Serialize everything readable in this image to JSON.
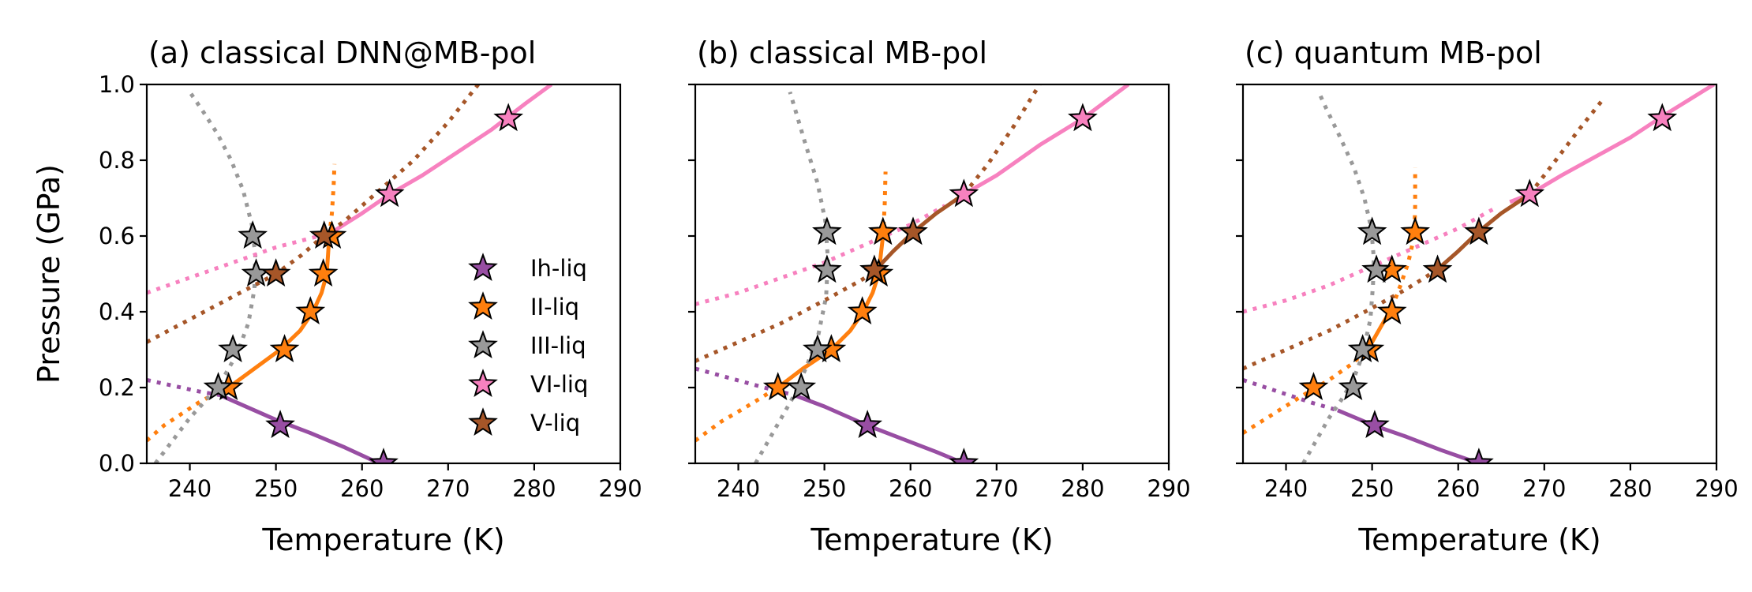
{
  "chart_data": [
    {
      "type": "line",
      "title": "(a) classical DNN@MB-pol",
      "xlabel": "Temperature (K)",
      "ylabel": "Pressure (GPa)",
      "xlim": [
        235,
        290
      ],
      "ylim": [
        0,
        1.0
      ],
      "xticks": [
        240,
        250,
        260,
        270,
        280,
        290
      ],
      "yticks": [
        0.0,
        0.2,
        0.4,
        0.6,
        0.8,
        1.0
      ],
      "ytick_labels": [
        "0.0",
        "0.2",
        "0.4",
        "0.6",
        "0.8",
        "1.0"
      ],
      "legend": {
        "location": "lower-right",
        "entries": [
          {
            "name": "Ih-liq",
            "color": "#984ea3"
          },
          {
            "name": "II-liq",
            "color": "#ff7f0e"
          },
          {
            "name": "III-liq",
            "color": "#999999"
          },
          {
            "name": "VI-liq",
            "color": "#f781bf"
          },
          {
            "name": "V-liq",
            "color": "#a65628"
          }
        ]
      },
      "curves": [
        {
          "phase": "Ih-liq",
          "color": "#984ea3",
          "style": "dotted",
          "x": [
            235,
            238,
            241,
            243.5
          ],
          "y": [
            0.22,
            0.205,
            0.19,
            0.18
          ]
        },
        {
          "phase": "Ih-liq",
          "color": "#984ea3",
          "style": "solid",
          "x": [
            243.5,
            247,
            250,
            254,
            258,
            262
          ],
          "y": [
            0.18,
            0.145,
            0.115,
            0.08,
            0.042,
            0.0
          ]
        },
        {
          "phase": "II-liq",
          "color": "#ff7f0e",
          "style": "dotted",
          "x": [
            235,
            237,
            239,
            241,
            243,
            244.5
          ],
          "y": [
            0.06,
            0.1,
            0.13,
            0.16,
            0.185,
            0.2
          ]
        },
        {
          "phase": "II-liq",
          "color": "#ff7f0e",
          "style": "solid",
          "x": [
            244.5,
            247.5,
            250.5,
            252.8,
            254.3,
            255.3,
            255.9,
            256.2
          ],
          "y": [
            0.2,
            0.25,
            0.3,
            0.35,
            0.4,
            0.45,
            0.5,
            0.6
          ]
        },
        {
          "phase": "II-liq",
          "color": "#ff7f0e",
          "style": "dotted",
          "x": [
            256.2,
            256.5,
            256.7,
            256.8
          ],
          "y": [
            0.6,
            0.66,
            0.73,
            0.79
          ]
        },
        {
          "phase": "III-liq",
          "color": "#999999",
          "style": "dotted",
          "x": [
            236,
            238,
            240,
            242,
            244,
            245.5,
            246.8,
            247.5,
            247.6,
            247.2,
            246.2,
            244.8,
            243.2,
            241.5,
            240
          ],
          "y": [
            0.0,
            0.06,
            0.12,
            0.17,
            0.23,
            0.29,
            0.37,
            0.46,
            0.55,
            0.63,
            0.72,
            0.8,
            0.87,
            0.93,
            0.98
          ]
        },
        {
          "phase": "VI-liq",
          "color": "#f781bf",
          "style": "dotted",
          "x": [
            235,
            240,
            245,
            250,
            255,
            256.5
          ],
          "y": [
            0.45,
            0.49,
            0.53,
            0.57,
            0.6,
            0.61
          ]
        },
        {
          "phase": "VI-liq",
          "color": "#f781bf",
          "style": "solid",
          "x": [
            256.5,
            260,
            263.2,
            267,
            271,
            275,
            279,
            282
          ],
          "y": [
            0.61,
            0.66,
            0.71,
            0.76,
            0.82,
            0.88,
            0.95,
            1.0
          ]
        },
        {
          "phase": "V-liq",
          "color": "#a65628",
          "style": "dotted",
          "x": [
            235,
            240,
            245,
            250,
            253,
            255.5,
            258,
            262,
            266,
            270,
            273.5
          ],
          "y": [
            0.32,
            0.38,
            0.44,
            0.5,
            0.55,
            0.6,
            0.64,
            0.72,
            0.8,
            0.9,
            1.0
          ]
        }
      ],
      "points": [
        {
          "phase": "Ih-liq",
          "color": "#984ea3",
          "x": [
            250.5,
            262.5
          ],
          "y": [
            0.1,
            0.0
          ]
        },
        {
          "phase": "II-liq",
          "color": "#ff7f0e",
          "x": [
            244.5,
            251,
            254,
            255.5,
            256.5
          ],
          "y": [
            0.2,
            0.3,
            0.4,
            0.5,
            0.6
          ]
        },
        {
          "phase": "III-liq",
          "color": "#999999",
          "x": [
            243.3,
            245,
            247.7,
            247.3
          ],
          "y": [
            0.2,
            0.3,
            0.5,
            0.6
          ]
        },
        {
          "phase": "VI-liq",
          "color": "#f781bf",
          "x": [
            263.2,
            277
          ],
          "y": [
            0.71,
            0.91
          ]
        },
        {
          "phase": "V-liq",
          "color": "#a65628",
          "x": [
            250,
            255.6
          ],
          "y": [
            0.5,
            0.6
          ]
        }
      ]
    },
    {
      "type": "line",
      "title": "(b) classical MB-pol",
      "xlabel": "Temperature (K)",
      "ylabel": "",
      "xlim": [
        235,
        290
      ],
      "ylim": [
        0,
        1.0
      ],
      "xticks": [
        240,
        250,
        260,
        270,
        280,
        290
      ],
      "yticks": [
        0.0,
        0.2,
        0.4,
        0.6,
        0.8,
        1.0
      ],
      "ytick_labels": [],
      "curves": [
        {
          "phase": "Ih-liq",
          "color": "#984ea3",
          "style": "dotted",
          "x": [
            235,
            239,
            243,
            246.5
          ],
          "y": [
            0.25,
            0.225,
            0.2,
            0.18
          ]
        },
        {
          "phase": "Ih-liq",
          "color": "#984ea3",
          "style": "solid",
          "x": [
            246.5,
            250,
            255,
            259,
            263,
            266.2
          ],
          "y": [
            0.18,
            0.15,
            0.1,
            0.065,
            0.03,
            0.0
          ]
        },
        {
          "phase": "II-liq",
          "color": "#ff7f0e",
          "style": "dotted",
          "x": [
            235,
            238,
            241,
            243.5,
            244.6
          ],
          "y": [
            0.06,
            0.11,
            0.15,
            0.185,
            0.2
          ]
        },
        {
          "phase": "II-liq",
          "color": "#ff7f0e",
          "style": "solid",
          "x": [
            244.6,
            247.5,
            250.8,
            253,
            254.5,
            255.6,
            256.3,
            256.8
          ],
          "y": [
            0.2,
            0.25,
            0.3,
            0.35,
            0.4,
            0.45,
            0.5,
            0.6
          ]
        },
        {
          "phase": "II-liq",
          "color": "#ff7f0e",
          "style": "dotted",
          "x": [
            256.8,
            257,
            257.1
          ],
          "y": [
            0.6,
            0.68,
            0.77
          ]
        },
        {
          "phase": "III-liq",
          "color": "#999999",
          "style": "dotted",
          "x": [
            242,
            244.5,
            246.5,
            248,
            249.3,
            250.2,
            250.4,
            250.1,
            249.2,
            247.7,
            246
          ],
          "y": [
            0.0,
            0.1,
            0.18,
            0.26,
            0.34,
            0.44,
            0.54,
            0.64,
            0.74,
            0.85,
            0.98
          ]
        },
        {
          "phase": "VI-liq",
          "color": "#f781bf",
          "style": "dotted",
          "x": [
            235,
            240,
            245,
            250,
            255,
            260,
            264
          ],
          "y": [
            0.42,
            0.45,
            0.49,
            0.53,
            0.58,
            0.63,
            0.68
          ]
        },
        {
          "phase": "VI-liq",
          "color": "#f781bf",
          "style": "solid",
          "x": [
            266.2,
            270,
            275,
            280,
            285.3
          ],
          "y": [
            0.71,
            0.76,
            0.84,
            0.91,
            1.0
          ]
        },
        {
          "phase": "V-liq",
          "color": "#a65628",
          "style": "dotted",
          "x": [
            235,
            240,
            245,
            250,
            254,
            255.5
          ],
          "y": [
            0.27,
            0.32,
            0.37,
            0.43,
            0.48,
            0.5
          ]
        },
        {
          "phase": "V-liq",
          "color": "#a65628",
          "style": "solid",
          "x": [
            255.5,
            258,
            260.3,
            263,
            266.2
          ],
          "y": [
            0.5,
            0.56,
            0.61,
            0.66,
            0.71
          ]
        },
        {
          "phase": "V-liq",
          "color": "#a65628",
          "style": "dotted",
          "x": [
            266.2,
            269,
            272,
            275
          ],
          "y": [
            0.71,
            0.79,
            0.89,
            1.0
          ]
        }
      ],
      "points": [
        {
          "phase": "Ih-liq",
          "color": "#984ea3",
          "x": [
            255,
            266.2
          ],
          "y": [
            0.1,
            0.0
          ]
        },
        {
          "phase": "II-liq",
          "color": "#ff7f0e",
          "x": [
            244.6,
            250.8,
            254.4,
            256.3,
            256.8
          ],
          "y": [
            0.2,
            0.3,
            0.4,
            0.5,
            0.61
          ]
        },
        {
          "phase": "III-liq",
          "color": "#999999",
          "x": [
            247.3,
            249.2,
            250.3,
            250.3
          ],
          "y": [
            0.2,
            0.3,
            0.51,
            0.61
          ]
        },
        {
          "phase": "VI-liq",
          "color": "#f781bf",
          "x": [
            266.2,
            280
          ],
          "y": [
            0.71,
            0.91
          ]
        },
        {
          "phase": "V-liq",
          "color": "#a65628",
          "x": [
            255.8,
            260.3
          ],
          "y": [
            0.51,
            0.61
          ]
        }
      ]
    },
    {
      "type": "line",
      "title": "(c) quantum MB-pol",
      "xlabel": "Temperature (K)",
      "ylabel": "",
      "xlim": [
        235,
        290
      ],
      "ylim": [
        0,
        1.0
      ],
      "xticks": [
        240,
        250,
        260,
        270,
        280,
        290
      ],
      "yticks": [
        0.0,
        0.2,
        0.4,
        0.6,
        0.8,
        1.0
      ],
      "ytick_labels": [],
      "curves": [
        {
          "phase": "Ih-liq",
          "color": "#984ea3",
          "style": "dotted",
          "x": [
            235,
            239,
            243,
            246
          ],
          "y": [
            0.22,
            0.19,
            0.16,
            0.14
          ]
        },
        {
          "phase": "Ih-liq",
          "color": "#984ea3",
          "style": "solid",
          "x": [
            246,
            250.2,
            254,
            258,
            262.4
          ],
          "y": [
            0.14,
            0.1,
            0.07,
            0.035,
            0.0
          ]
        },
        {
          "phase": "II-liq",
          "color": "#ff7f0e",
          "style": "dotted",
          "x": [
            235,
            238.5,
            242,
            245,
            247.5,
            249.5
          ],
          "y": [
            0.08,
            0.13,
            0.18,
            0.22,
            0.26,
            0.3
          ]
        },
        {
          "phase": "II-liq",
          "color": "#ff7f0e",
          "style": "solid",
          "x": [
            249.5,
            251,
            252.3
          ],
          "y": [
            0.3,
            0.36,
            0.41
          ]
        },
        {
          "phase": "II-liq",
          "color": "#ff7f0e",
          "style": "dotted",
          "x": [
            252.3,
            253.3,
            254.2,
            254.9,
            255,
            255
          ],
          "y": [
            0.41,
            0.47,
            0.53,
            0.6,
            0.68,
            0.78
          ]
        },
        {
          "phase": "III-liq",
          "color": "#999999",
          "style": "dotted",
          "x": [
            242,
            243.5,
            245,
            246.5,
            247.8,
            248.8,
            249.8,
            250.1,
            250.2,
            249.9,
            249.1,
            247.9,
            246.3,
            244.6,
            243.8
          ],
          "y": [
            0.0,
            0.06,
            0.12,
            0.17,
            0.22,
            0.28,
            0.38,
            0.47,
            0.54,
            0.62,
            0.7,
            0.78,
            0.86,
            0.94,
            0.98
          ]
        },
        {
          "phase": "VI-liq",
          "color": "#f781bf",
          "style": "dotted",
          "x": [
            235,
            240,
            245,
            250,
            255,
            260,
            264
          ],
          "y": [
            0.4,
            0.43,
            0.47,
            0.52,
            0.57,
            0.62,
            0.67
          ]
        },
        {
          "phase": "VI-liq",
          "color": "#f781bf",
          "style": "solid",
          "x": [
            266,
            268.3,
            272,
            276,
            280,
            284,
            289.7
          ],
          "y": [
            0.69,
            0.71,
            0.76,
            0.81,
            0.86,
            0.92,
            1.0
          ]
        },
        {
          "phase": "V-liq",
          "color": "#a65628",
          "style": "dotted",
          "x": [
            235,
            240,
            245,
            250,
            254,
            257.5
          ],
          "y": [
            0.25,
            0.3,
            0.35,
            0.41,
            0.46,
            0.51
          ]
        },
        {
          "phase": "V-liq",
          "color": "#a65628",
          "style": "solid",
          "x": [
            257.5,
            260,
            262.3,
            265,
            268.3
          ],
          "y": [
            0.51,
            0.56,
            0.61,
            0.66,
            0.71
          ]
        },
        {
          "phase": "V-liq",
          "color": "#a65628",
          "style": "dotted",
          "x": [
            268.3,
            271,
            274,
            276.8
          ],
          "y": [
            0.71,
            0.79,
            0.88,
            0.96
          ]
        }
      ],
      "points": [
        {
          "phase": "Ih-liq",
          "color": "#984ea3",
          "x": [
            250.3,
            262.4
          ],
          "y": [
            0.1,
            0.0
          ]
        },
        {
          "phase": "II-liq",
          "color": "#ff7f0e",
          "x": [
            243.2,
            249.7,
            252.3,
            252.3,
            255
          ],
          "y": [
            0.2,
            0.3,
            0.4,
            0.51,
            0.61
          ]
        },
        {
          "phase": "III-liq",
          "color": "#999999",
          "x": [
            247.8,
            248.9,
            250.5,
            250
          ],
          "y": [
            0.2,
            0.3,
            0.51,
            0.61
          ]
        },
        {
          "phase": "VI-liq",
          "color": "#f781bf",
          "x": [
            268.3,
            283.7
          ],
          "y": [
            0.71,
            0.91
          ]
        },
        {
          "phase": "V-liq",
          "color": "#a65628",
          "x": [
            257.6,
            262.4
          ],
          "y": [
            0.51,
            0.61
          ]
        }
      ]
    }
  ]
}
